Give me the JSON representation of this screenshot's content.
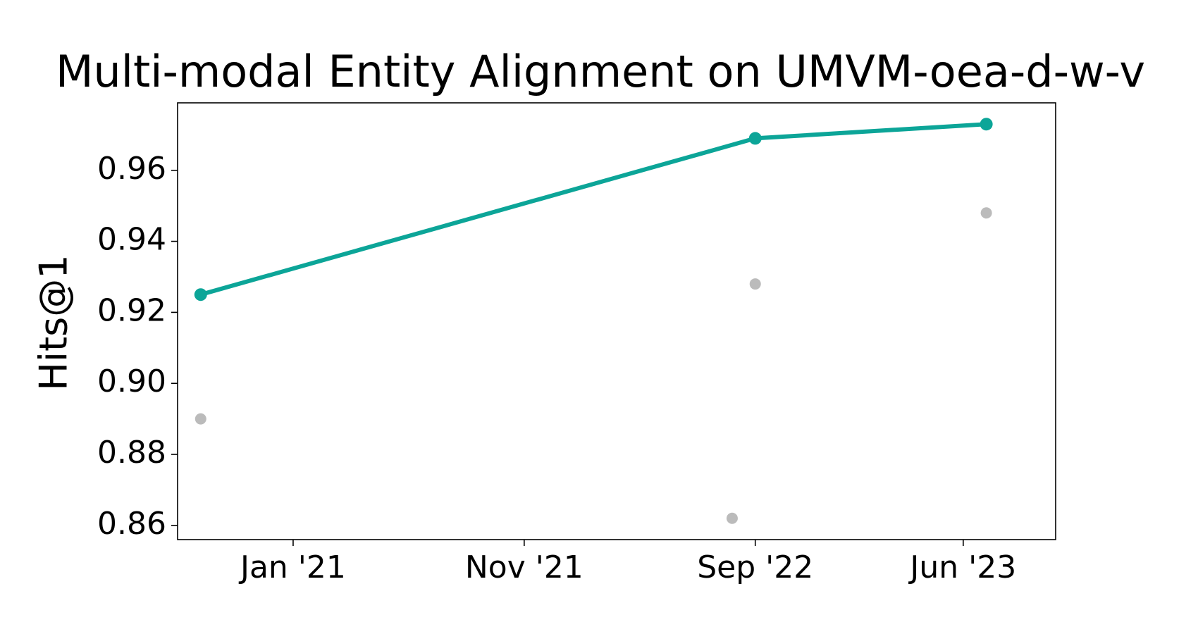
{
  "chart_data": {
    "type": "line",
    "title": "Multi-modal Entity Alignment on UMVM-oea-d-w-v",
    "y_label": "Hits@1",
    "xlim": [
      "2020-08",
      "2023-10"
    ],
    "xticks": [
      {
        "value": "2021-01",
        "label": "Jan '21"
      },
      {
        "value": "2021-11",
        "label": "Nov '21"
      },
      {
        "value": "2022-09",
        "label": "Sep '22"
      },
      {
        "value": "2023-06",
        "label": "Jun '23"
      }
    ],
    "ylim": [
      0.856,
      0.979
    ],
    "yticks": [
      {
        "value": 0.86,
        "label": "0.86"
      },
      {
        "value": 0.88,
        "label": "0.88"
      },
      {
        "value": 0.9,
        "label": "0.90"
      },
      {
        "value": 0.92,
        "label": "0.92"
      },
      {
        "value": 0.94,
        "label": "0.94"
      },
      {
        "value": 0.96,
        "label": "0.96"
      }
    ],
    "series": [
      {
        "color": "#bbbbbb",
        "mode": "markers",
        "x": [
          "2020-09",
          "2022-08",
          "2022-09",
          "2023-07"
        ],
        "values": [
          0.89,
          0.862,
          0.928,
          0.948
        ]
      },
      {
        "color": "#0ca598",
        "mode": "lines+markers",
        "x": [
          "2020-09",
          "2022-09",
          "2023-07"
        ],
        "values": [
          0.925,
          0.969,
          0.973
        ]
      }
    ]
  }
}
